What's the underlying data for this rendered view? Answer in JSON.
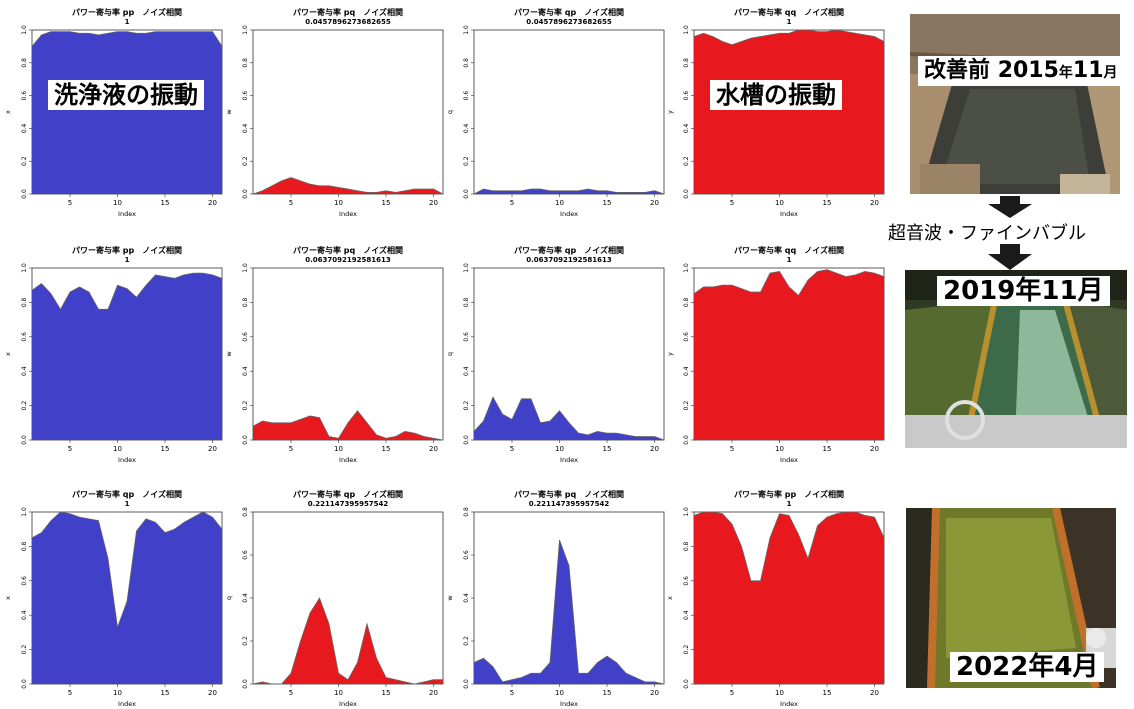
{
  "chart_data": [
    {
      "type": "area",
      "title": "パワー寄与率 pp　ノイズ相関",
      "subtitle": "1",
      "xlabel": "Index",
      "ylabel": "x",
      "ylim": [
        0,
        1
      ],
      "yticks": [
        "0.0",
        "0.2",
        "0.4",
        "0.6",
        "0.8",
        "1.0"
      ],
      "xticks": [
        5,
        10,
        15,
        20
      ],
      "color": "#4040c8",
      "x": [
        1,
        2,
        3,
        4,
        5,
        6,
        7,
        8,
        9,
        10,
        11,
        12,
        13,
        14,
        15,
        16,
        17,
        18,
        19,
        20,
        21
      ],
      "values": [
        0.9,
        0.97,
        0.99,
        0.99,
        0.99,
        0.98,
        0.98,
        0.97,
        0.98,
        0.99,
        0.99,
        0.98,
        0.98,
        0.99,
        0.99,
        0.99,
        0.99,
        0.99,
        0.99,
        0.99,
        0.9
      ]
    },
    {
      "type": "area",
      "title": "パワー寄与率 pq　ノイズ相関",
      "subtitle": "0.0457896273682655",
      "xlabel": "Index",
      "ylabel": "w",
      "ylim": [
        0,
        1
      ],
      "yticks": [
        "0.0",
        "0.2",
        "0.4",
        "0.6",
        "0.8",
        "1.0"
      ],
      "xticks": [
        5,
        10,
        15,
        20
      ],
      "color": "#e8191e",
      "x": [
        1,
        2,
        3,
        4,
        5,
        6,
        7,
        8,
        9,
        10,
        11,
        12,
        13,
        14,
        15,
        16,
        17,
        18,
        19,
        20,
        21
      ],
      "values": [
        0.0,
        0.02,
        0.05,
        0.08,
        0.1,
        0.08,
        0.06,
        0.05,
        0.05,
        0.04,
        0.03,
        0.02,
        0.01,
        0.01,
        0.02,
        0.01,
        0.02,
        0.03,
        0.03,
        0.03,
        0.0
      ]
    },
    {
      "type": "area",
      "title": "パワー寄与率 qp　ノイズ相関",
      "subtitle": "0.0457896273682655",
      "xlabel": "Index",
      "ylabel": "q",
      "ylim": [
        0,
        1
      ],
      "yticks": [
        "0.0",
        "0.2",
        "0.4",
        "0.6",
        "0.8",
        "1.0"
      ],
      "xticks": [
        5,
        10,
        15,
        20
      ],
      "color": "#4040c8",
      "x": [
        1,
        2,
        3,
        4,
        5,
        6,
        7,
        8,
        9,
        10,
        11,
        12,
        13,
        14,
        15,
        16,
        17,
        18,
        19,
        20,
        21
      ],
      "values": [
        0.0,
        0.03,
        0.02,
        0.02,
        0.02,
        0.02,
        0.03,
        0.03,
        0.02,
        0.02,
        0.02,
        0.02,
        0.03,
        0.02,
        0.02,
        0.01,
        0.01,
        0.01,
        0.01,
        0.02,
        0.0
      ]
    },
    {
      "type": "area",
      "title": "パワー寄与率 qq　ノイズ相関",
      "subtitle": "1",
      "xlabel": "Index",
      "ylabel": "y",
      "ylim": [
        0,
        1
      ],
      "yticks": [
        "0.0",
        "0.2",
        "0.4",
        "0.6",
        "0.8",
        "1.0"
      ],
      "xticks": [
        5,
        10,
        15,
        20
      ],
      "color": "#e8191e",
      "x": [
        1,
        2,
        3,
        4,
        5,
        6,
        7,
        8,
        9,
        10,
        11,
        12,
        13,
        14,
        15,
        16,
        17,
        18,
        19,
        20,
        21
      ],
      "values": [
        0.96,
        0.98,
        0.96,
        0.93,
        0.91,
        0.93,
        0.95,
        0.96,
        0.97,
        0.98,
        0.98,
        1.0,
        1.0,
        0.99,
        0.99,
        1.0,
        0.99,
        0.98,
        0.97,
        0.96,
        0.93
      ]
    },
    {
      "type": "area",
      "title": "パワー寄与率 pp　ノイズ相関",
      "subtitle": "1",
      "xlabel": "Index",
      "ylabel": "x",
      "ylim": [
        0,
        1
      ],
      "yticks": [
        "0.0",
        "0.2",
        "0.4",
        "0.6",
        "0.8",
        "1.0"
      ],
      "xticks": [
        5,
        10,
        15,
        20
      ],
      "color": "#4040c8",
      "x": [
        1,
        2,
        3,
        4,
        5,
        6,
        7,
        8,
        9,
        10,
        11,
        12,
        13,
        14,
        15,
        16,
        17,
        18,
        19,
        20,
        21
      ],
      "values": [
        0.87,
        0.91,
        0.85,
        0.76,
        0.86,
        0.89,
        0.86,
        0.76,
        0.76,
        0.9,
        0.88,
        0.83,
        0.9,
        0.96,
        0.95,
        0.94,
        0.96,
        0.97,
        0.97,
        0.96,
        0.94
      ]
    },
    {
      "type": "area",
      "title": "パワー寄与率 pq　ノイズ相関",
      "subtitle": "0.0637092192581613",
      "xlabel": "Index",
      "ylabel": "w",
      "ylim": [
        0,
        1
      ],
      "yticks": [
        "0.0",
        "0.2",
        "0.4",
        "0.6",
        "0.8",
        "1.0"
      ],
      "xticks": [
        5,
        10,
        15,
        20
      ],
      "color": "#e8191e",
      "x": [
        1,
        2,
        3,
        4,
        5,
        6,
        7,
        8,
        9,
        10,
        11,
        12,
        13,
        14,
        15,
        16,
        17,
        18,
        19,
        20,
        21
      ],
      "values": [
        0.08,
        0.11,
        0.1,
        0.1,
        0.1,
        0.12,
        0.14,
        0.13,
        0.02,
        0.01,
        0.1,
        0.17,
        0.1,
        0.03,
        0.01,
        0.02,
        0.05,
        0.04,
        0.02,
        0.01,
        0.0
      ]
    },
    {
      "type": "area",
      "title": "パワー寄与率 qp　ノイズ相関",
      "subtitle": "0.0637092192581613",
      "xlabel": "Index",
      "ylabel": "q",
      "ylim": [
        0,
        1
      ],
      "yticks": [
        "0.0",
        "0.2",
        "0.4",
        "0.6",
        "0.8",
        "1.0"
      ],
      "xticks": [
        5,
        10,
        15,
        20
      ],
      "color": "#4040c8",
      "x": [
        1,
        2,
        3,
        4,
        5,
        6,
        7,
        8,
        9,
        10,
        11,
        12,
        13,
        14,
        15,
        16,
        17,
        18,
        19,
        20,
        21
      ],
      "values": [
        0.05,
        0.11,
        0.25,
        0.15,
        0.12,
        0.24,
        0.24,
        0.1,
        0.11,
        0.17,
        0.1,
        0.04,
        0.03,
        0.05,
        0.04,
        0.04,
        0.03,
        0.02,
        0.02,
        0.02,
        0.0
      ]
    },
    {
      "type": "area",
      "title": "パワー寄与率 qq　ノイズ相関",
      "subtitle": "1",
      "xlabel": "Index",
      "ylabel": "y",
      "ylim": [
        0,
        1
      ],
      "yticks": [
        "0.0",
        "0.2",
        "0.4",
        "0.6",
        "0.8",
        "1.0"
      ],
      "xticks": [
        5,
        10,
        15,
        20
      ],
      "color": "#e8191e",
      "x": [
        1,
        2,
        3,
        4,
        5,
        6,
        7,
        8,
        9,
        10,
        11,
        12,
        13,
        14,
        15,
        16,
        17,
        18,
        19,
        20,
        21
      ],
      "values": [
        0.85,
        0.89,
        0.89,
        0.9,
        0.9,
        0.88,
        0.86,
        0.86,
        0.97,
        0.98,
        0.89,
        0.84,
        0.93,
        0.98,
        0.99,
        0.97,
        0.95,
        0.96,
        0.98,
        0.97,
        0.95
      ]
    },
    {
      "type": "area",
      "title": "パワー寄与率 qp　ノイズ相関",
      "subtitle": "1",
      "xlabel": "Index",
      "ylabel": "x",
      "ylim": [
        0,
        1
      ],
      "yticks": [
        "0.0",
        "0.2",
        "0.4",
        "0.6",
        "0.8",
        "1.0"
      ],
      "xticks": [
        5,
        10,
        15,
        20
      ],
      "color": "#4040c8",
      "x": [
        1,
        2,
        3,
        4,
        5,
        6,
        7,
        8,
        9,
        10,
        11,
        12,
        13,
        14,
        15,
        16,
        17,
        18,
        19,
        20,
        21
      ],
      "values": [
        0.85,
        0.88,
        0.95,
        1.0,
        0.99,
        0.97,
        0.96,
        0.95,
        0.73,
        0.33,
        0.48,
        0.89,
        0.96,
        0.94,
        0.88,
        0.9,
        0.94,
        0.97,
        1.0,
        0.97,
        0.9
      ]
    },
    {
      "type": "area",
      "title": "パワー寄与率 qp　ノイズ相関",
      "subtitle": "0.221147395957542",
      "xlabel": "Index",
      "ylabel": "q",
      "ylim": [
        0,
        0.8
      ],
      "yticks": [
        "0.0",
        "0.2",
        "0.4",
        "0.6",
        "0.8"
      ],
      "xticks": [
        5,
        10,
        15,
        20
      ],
      "color": "#e8191e",
      "x": [
        1,
        2,
        3,
        4,
        5,
        6,
        7,
        8,
        9,
        10,
        11,
        12,
        13,
        14,
        15,
        16,
        17,
        18,
        19,
        20,
        21
      ],
      "values": [
        0.0,
        0.01,
        0.0,
        0.0,
        0.05,
        0.2,
        0.33,
        0.4,
        0.28,
        0.05,
        0.02,
        0.1,
        0.28,
        0.12,
        0.03,
        0.02,
        0.01,
        0.0,
        0.01,
        0.02,
        0.02
      ]
    },
    {
      "type": "area",
      "title": "パワー寄与率 pq　ノイズ相関",
      "subtitle": "0.221147395957542",
      "xlabel": "Index",
      "ylabel": "w",
      "ylim": [
        0,
        0.8
      ],
      "yticks": [
        "0.0",
        "0.2",
        "0.4",
        "0.6",
        "0.8"
      ],
      "xticks": [
        5,
        10,
        15,
        20
      ],
      "color": "#4040c8",
      "x": [
        1,
        2,
        3,
        4,
        5,
        6,
        7,
        8,
        9,
        10,
        11,
        12,
        13,
        14,
        15,
        16,
        17,
        18,
        19,
        20,
        21
      ],
      "values": [
        0.1,
        0.12,
        0.08,
        0.01,
        0.02,
        0.03,
        0.05,
        0.05,
        0.1,
        0.67,
        0.55,
        0.05,
        0.05,
        0.1,
        0.13,
        0.1,
        0.05,
        0.03,
        0.01,
        0.01,
        0.0
      ]
    },
    {
      "type": "area",
      "title": "パワー寄与率 pp　ノイズ相関",
      "subtitle": "1",
      "xlabel": "Index",
      "ylabel": "x",
      "ylim": [
        0,
        1
      ],
      "yticks": [
        "0.0",
        "0.2",
        "0.4",
        "0.6",
        "0.8",
        "1.0"
      ],
      "xticks": [
        5,
        10,
        15,
        20
      ],
      "color": "#e8191e",
      "x": [
        1,
        2,
        3,
        4,
        5,
        6,
        7,
        8,
        9,
        10,
        11,
        12,
        13,
        14,
        15,
        16,
        17,
        18,
        19,
        20,
        21
      ],
      "values": [
        0.98,
        1.0,
        1.0,
        0.99,
        0.93,
        0.8,
        0.6,
        0.6,
        0.85,
        0.99,
        0.98,
        0.87,
        0.73,
        0.92,
        0.97,
        0.99,
        1.0,
        1.0,
        0.98,
        0.97,
        0.85
      ]
    }
  ],
  "labels": {
    "cleaning_vibration": "洗浄液の振動",
    "tank_vibration": "水槽の振動",
    "before_label": "改善前",
    "before_date": "2015",
    "before_date_small1": "年",
    "before_date_num2": "11",
    "before_date_small2": "月",
    "method": "超音波・ファインバブル",
    "mid_date": "2019年11月",
    "final_date": "2022年4月"
  },
  "colors": {
    "blue": "#4040c8",
    "red": "#e8191e",
    "arrow": "#1a1a1a"
  }
}
